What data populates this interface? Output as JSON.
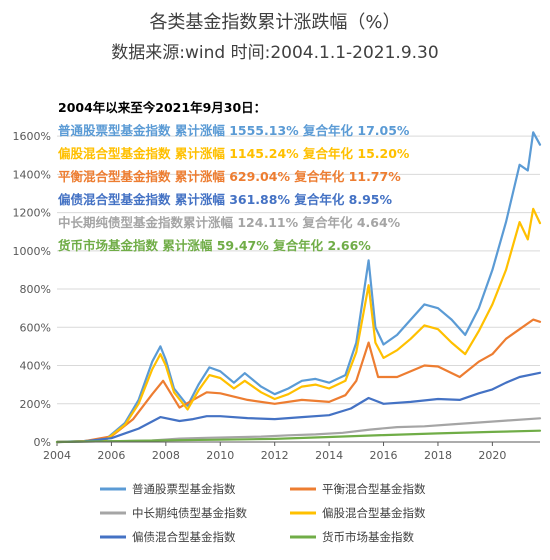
{
  "chart_data": {
    "type": "line",
    "title": "各类基金指数累计涨跌幅（%）",
    "subtitle": "数据来源:wind  时间:2004.1.1-2021.9.30",
    "annotation_header": "2004年以来至今2021年9月30日：",
    "annotations": [
      {
        "text": "普通股票型基金指数  累计涨幅 1555.13%  复合年化 17.05%",
        "color": "#5b9bd5"
      },
      {
        "text": "偏股混合型基金指数  累计涨幅 1145.24%  复合年化 15.20%",
        "color": "#ffc000"
      },
      {
        "text": "平衡混合型基金指数  累计涨幅 629.04%  复合年化 11.77%",
        "color": "#ed7d31"
      },
      {
        "text": "偏债混合型基金指数  累计涨幅 361.88%  复合年化 8.95%",
        "color": "#4472c4"
      },
      {
        "text": "中长期纯债型基金指数累计涨幅 124.11% 复合年化 4.64%",
        "color": "#a5a5a5"
      },
      {
        "text": "货币市场基金指数        累计涨幅 59.47%  复合年化 2.66%",
        "color": "#70ad47"
      }
    ],
    "x_ticks": [
      "2004",
      "2006",
      "2008",
      "2010",
      "2012",
      "2014",
      "2016",
      "2018",
      "2020"
    ],
    "y_ticks": [
      "0%",
      "200%",
      "400%",
      "600%",
      "800%",
      "1000%",
      "1200%",
      "1400%",
      "1600%"
    ],
    "xlim": [
      2004,
      2021.75
    ],
    "ylim": [
      0,
      1700
    ],
    "series": [
      {
        "name": "普通股票型基金指数",
        "color": "#5b9bd5",
        "x": [
          2004.0,
          2005.0,
          2005.8,
          2006.5,
          2007.0,
          2007.5,
          2007.8,
          2008.0,
          2008.3,
          2008.8,
          2009.2,
          2009.6,
          2010.0,
          2010.5,
          2010.9,
          2011.5,
          2012.0,
          2012.5,
          2013.0,
          2013.5,
          2014.0,
          2014.6,
          2015.0,
          2015.45,
          2015.7,
          2016.0,
          2016.5,
          2017.0,
          2017.5,
          2018.0,
          2018.5,
          2019.0,
          2019.5,
          2020.0,
          2020.5,
          2021.0,
          2021.3,
          2021.5,
          2021.75
        ],
        "y": [
          0,
          5,
          15,
          100,
          220,
          420,
          500,
          430,
          280,
          190,
          300,
          390,
          370,
          310,
          360,
          290,
          250,
          280,
          320,
          330,
          310,
          350,
          520,
          950,
          600,
          510,
          560,
          640,
          720,
          700,
          640,
          560,
          700,
          900,
          1150,
          1450,
          1420,
          1620,
          1555
        ]
      },
      {
        "name": "平衡混合型基金指数",
        "color": "#ed7d31",
        "x": [
          2004.0,
          2005.0,
          2006.0,
          2006.8,
          2007.5,
          2007.9,
          2008.5,
          2009.0,
          2009.5,
          2010.0,
          2011.0,
          2012.0,
          2013.0,
          2014.0,
          2014.6,
          2015.0,
          2015.45,
          2015.8,
          2016.5,
          2017.5,
          2018.0,
          2018.8,
          2019.5,
          2020.0,
          2020.5,
          2021.0,
          2021.5,
          2021.75
        ],
        "y": [
          0,
          4,
          30,
          120,
          250,
          320,
          180,
          220,
          260,
          255,
          220,
          200,
          220,
          210,
          245,
          320,
          520,
          340,
          340,
          400,
          395,
          340,
          420,
          460,
          540,
          590,
          640,
          629
        ]
      },
      {
        "name": "中长期纯债型基金指数",
        "color": "#a5a5a5",
        "x": [
          2004.0,
          2006.0,
          2007.5,
          2008.5,
          2009.5,
          2010.5,
          2011.5,
          2012.5,
          2013.5,
          2014.5,
          2015.5,
          2016.5,
          2017.5,
          2018.5,
          2019.5,
          2020.5,
          2021.75
        ],
        "y": [
          0,
          4,
          8,
          18,
          22,
          25,
          28,
          35,
          40,
          48,
          65,
          78,
          82,
          92,
          102,
          112,
          124
        ]
      },
      {
        "name": "偏股混合型基金指数",
        "color": "#ffc000",
        "x": [
          2004.0,
          2005.0,
          2005.8,
          2006.5,
          2007.0,
          2007.5,
          2007.8,
          2008.0,
          2008.3,
          2008.8,
          2009.2,
          2009.6,
          2010.0,
          2010.5,
          2010.9,
          2011.5,
          2012.0,
          2012.5,
          2013.0,
          2013.5,
          2014.0,
          2014.6,
          2015.0,
          2015.45,
          2015.7,
          2016.0,
          2016.5,
          2017.0,
          2017.5,
          2018.0,
          2018.5,
          2019.0,
          2019.5,
          2020.0,
          2020.5,
          2021.0,
          2021.3,
          2021.5,
          2021.75
        ],
        "y": [
          0,
          4,
          12,
          90,
          200,
          380,
          460,
          400,
          260,
          170,
          270,
          350,
          335,
          280,
          320,
          260,
          225,
          250,
          290,
          300,
          280,
          320,
          470,
          820,
          520,
          440,
          480,
          540,
          610,
          590,
          520,
          460,
          580,
          720,
          900,
          1150,
          1060,
          1220,
          1145
        ]
      },
      {
        "name": "偏债混合型基金指数",
        "color": "#4472c4",
        "x": [
          2004.0,
          2005.0,
          2006.0,
          2007.0,
          2007.8,
          2008.5,
          2009.0,
          2009.5,
          2010.0,
          2011.0,
          2012.0,
          2013.0,
          2014.0,
          2014.8,
          2015.45,
          2016.0,
          2017.0,
          2018.0,
          2018.8,
          2019.5,
          2020.0,
          2020.5,
          2021.0,
          2021.75
        ],
        "y": [
          0,
          3,
          20,
          70,
          130,
          110,
          120,
          135,
          135,
          125,
          120,
          130,
          140,
          175,
          230,
          200,
          210,
          225,
          220,
          255,
          275,
          310,
          340,
          362
        ]
      },
      {
        "name": "货币市场基金指数",
        "color": "#70ad47",
        "x": [
          2004.0,
          2006.0,
          2008.0,
          2010.0,
          2012.0,
          2014.0,
          2016.0,
          2018.0,
          2020.0,
          2021.75
        ],
        "y": [
          0,
          4,
          9,
          12,
          16,
          26,
          36,
          45,
          53,
          59
        ]
      }
    ],
    "legend": [
      [
        "普通股票型基金指数",
        "平衡混合型基金指数"
      ],
      [
        "中长期纯债型基金指数",
        "偏股混合型基金指数"
      ],
      [
        "偏债混合型基金指数",
        "货币市场基金指数"
      ]
    ],
    "legend_colors": [
      [
        "#5b9bd5",
        "#ed7d31"
      ],
      [
        "#a5a5a5",
        "#ffc000"
      ],
      [
        "#4472c4",
        "#70ad47"
      ]
    ],
    "legend_position": "bottom",
    "grid": true,
    "grid_color": "#d9d9d9",
    "axis_color": "#595959"
  }
}
